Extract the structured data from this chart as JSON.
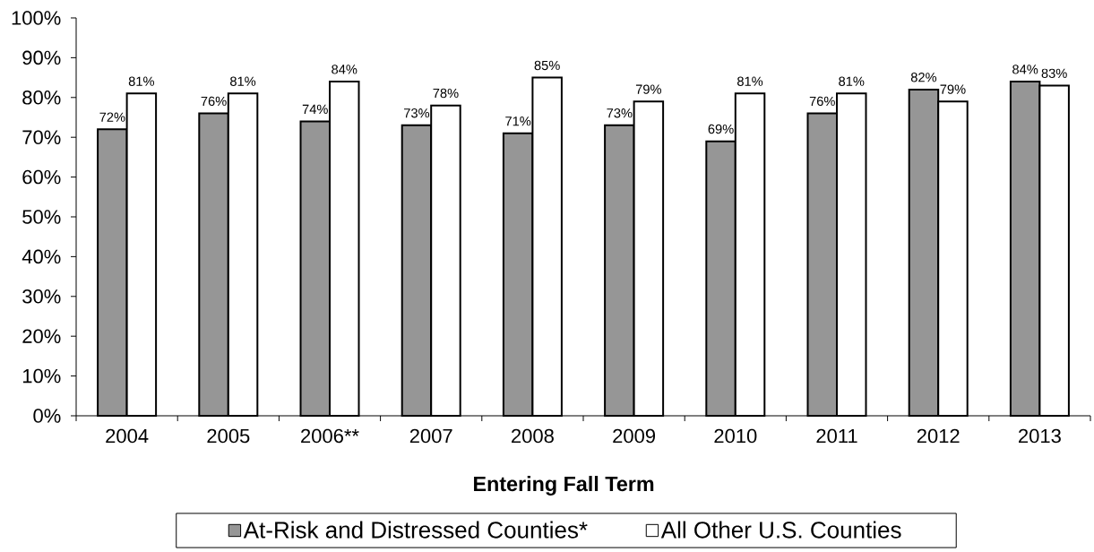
{
  "chart_data": {
    "type": "bar",
    "xlabel": "Entering Fall Term",
    "categories": [
      "2004",
      "2005",
      "2006**",
      "2007",
      "2008",
      "2009",
      "2010",
      "2011",
      "2012",
      "2013"
    ],
    "series": [
      {
        "name": "At-Risk and Distressed Counties*",
        "color": "#969696",
        "values": [
          72,
          76,
          74,
          73,
          71,
          73,
          69,
          76,
          82,
          84
        ],
        "value_labels": [
          "72%",
          "76%",
          "74%",
          "73%",
          "71%",
          "73%",
          "69%",
          "76%",
          "82%",
          "84%"
        ]
      },
      {
        "name": "All Other U.S. Counties",
        "color": "#ffffff",
        "values": [
          81,
          81,
          84,
          78,
          85,
          79,
          81,
          81,
          79,
          83
        ],
        "value_labels": [
          "81%",
          "81%",
          "84%",
          "78%",
          "85%",
          "79%",
          "81%",
          "81%",
          "79%",
          "83%"
        ]
      }
    ],
    "ylim": [
      0,
      100
    ],
    "yticks": [
      {
        "value": 0,
        "label": "0%"
      },
      {
        "value": 10,
        "label": "10%"
      },
      {
        "value": 20,
        "label": "20%"
      },
      {
        "value": 30,
        "label": "30%"
      },
      {
        "value": 40,
        "label": "40%"
      },
      {
        "value": 50,
        "label": "50%"
      },
      {
        "value": 60,
        "label": "60%"
      },
      {
        "value": 70,
        "label": "70%"
      },
      {
        "value": 80,
        "label": "80%"
      },
      {
        "value": 90,
        "label": "90%"
      },
      {
        "value": 100,
        "label": "100%"
      }
    ],
    "legend": "bottom"
  }
}
